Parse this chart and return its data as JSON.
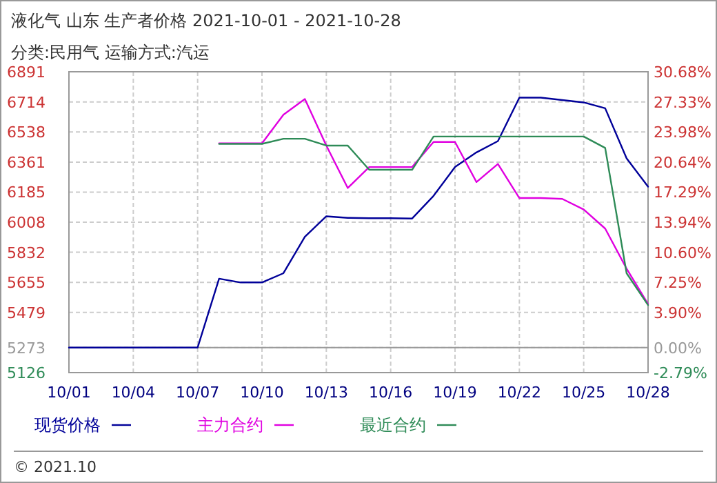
{
  "chart_data": {
    "type": "line",
    "title": "液化气 山东 生产者价格 2021-10-01 - 2021-10-28",
    "subtitle": "分类:民用气 运输方式:汽运",
    "x": [
      "2021-10-01",
      "2021-10-02",
      "2021-10-03",
      "2021-10-04",
      "2021-10-05",
      "2021-10-06",
      "2021-10-07",
      "2021-10-08",
      "2021-10-09",
      "2021-10-10",
      "2021-10-11",
      "2021-10-12",
      "2021-10-13",
      "2021-10-14",
      "2021-10-15",
      "2021-10-16",
      "2021-10-17",
      "2021-10-18",
      "2021-10-19",
      "2021-10-20",
      "2021-10-21",
      "2021-10-22",
      "2021-10-23",
      "2021-10-24",
      "2021-10-25",
      "2021-10-26",
      "2021-10-27",
      "2021-10-28"
    ],
    "series": [
      {
        "name": "现货价格",
        "color": "#000099",
        "values": [
          5273,
          5273,
          5273,
          5273,
          5273,
          5273,
          5273,
          5677,
          5655,
          5655,
          5709,
          5923,
          6043,
          6034,
          6032,
          6032,
          6030,
          6163,
          6332,
          6418,
          6484,
          6739,
          6739,
          6725,
          6711,
          6677,
          6383,
          6217
        ]
      },
      {
        "name": "主力合约",
        "color": "#e000e0",
        "values": [
          null,
          null,
          null,
          null,
          null,
          null,
          null,
          6471,
          6471,
          6471,
          6639,
          6731,
          6458,
          6209,
          6332,
          6332,
          6332,
          6479,
          6479,
          6244,
          6350,
          6150,
          6150,
          6145,
          6083,
          5971,
          5736,
          5528
        ]
      },
      {
        "name": "最近合约",
        "color": "#2e8b57",
        "values": [
          null,
          null,
          null,
          null,
          null,
          null,
          null,
          6468,
          6468,
          6468,
          6498,
          6498,
          6458,
          6458,
          6316,
          6316,
          6316,
          6511,
          6511,
          6511,
          6511,
          6511,
          6511,
          6511,
          6511,
          6444,
          5709,
          5522
        ]
      }
    ],
    "xlim": [
      "2021-10-01",
      "2021-10-28"
    ],
    "xticks": [
      {
        "value": "2021-10-01",
        "label": "10/01"
      },
      {
        "value": "2021-10-04",
        "label": "10/04"
      },
      {
        "value": "2021-10-07",
        "label": "10/07"
      },
      {
        "value": "2021-10-10",
        "label": "10/10"
      },
      {
        "value": "2021-10-13",
        "label": "10/13"
      },
      {
        "value": "2021-10-16",
        "label": "10/16"
      },
      {
        "value": "2021-10-19",
        "label": "10/19"
      },
      {
        "value": "2021-10-22",
        "label": "10/22"
      },
      {
        "value": "2021-10-25",
        "label": "10/25"
      },
      {
        "value": "2021-10-28",
        "label": "10/28"
      }
    ],
    "ylim": [
      5126,
      6891
    ],
    "yticks": [
      5126,
      5273,
      5479,
      5655,
      5832,
      6008,
      6185,
      6361,
      6538,
      6714,
      6891
    ],
    "y2lim": [
      -2.79,
      30.68
    ],
    "y2ticks": [
      {
        "value": -2.79,
        "label": "-2.79%"
      },
      {
        "value": 0,
        "label": "0.00%"
      },
      {
        "value": 3.9,
        "label": "3.90%"
      },
      {
        "value": 7.25,
        "label": "7.25%"
      },
      {
        "value": 10.6,
        "label": "10.60%"
      },
      {
        "value": 13.94,
        "label": "13.94%"
      },
      {
        "value": 17.29,
        "label": "17.29%"
      },
      {
        "value": 20.64,
        "label": "20.64%"
      },
      {
        "value": 23.98,
        "label": "23.98%"
      },
      {
        "value": 27.33,
        "label": "27.33%"
      },
      {
        "value": 30.68,
        "label": "30.68%"
      }
    ],
    "grid": true,
    "legend": "bottom",
    "line_style": "solid",
    "annotations": [
      "© 2021.10"
    ]
  }
}
